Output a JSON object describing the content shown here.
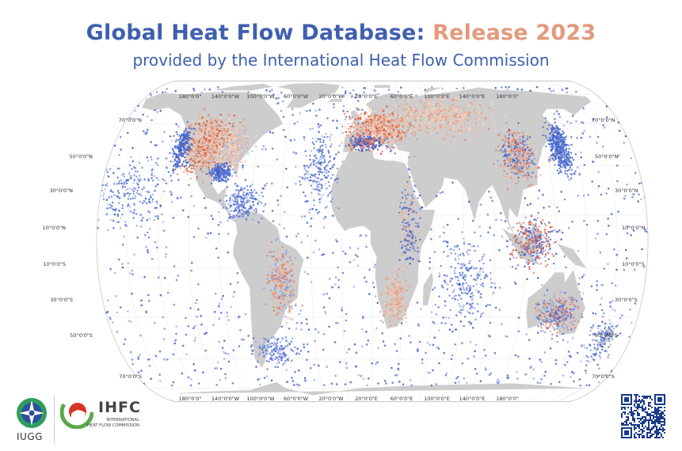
{
  "title_part1": "Global Heat Flow Database:",
  "title_part2": "Release 2023",
  "subtitle": "provided by the International Heat Flow Commission",
  "lon_labels": [
    "180°0'0\"",
    "140°0'0\"W",
    "100°0'0\"W",
    "60°0'0\"W",
    "20°0'0\"W",
    "20°0'0\"E",
    "60°0'0\"E",
    "100°0'0\"E",
    "140°0'0\"E",
    "180°0'0\""
  ],
  "lat_labels": [
    "70°0'0\"N",
    "50°0'0\"N",
    "30°0'0\"N",
    "10°0'0\"N",
    "10°0'0\"S",
    "30°0'0\"S",
    "50°0'0\"S",
    "70°0'0\"S"
  ],
  "logos": {
    "iugg": "IUGG",
    "ihfc": "IHFC",
    "ihfc_sub1": "INTERNATIONAL",
    "ihfc_sub2": "HEAT FLOW COMMISSION"
  },
  "colors": {
    "title_blue": "#3f5fb0",
    "title_orange": "#e39a7c",
    "land": "#cdcdcd",
    "low": "#3f5fc8",
    "high": "#d94a2a"
  },
  "icons": [
    "iugg-logo-icon",
    "ihfc-logo-icon",
    "qr-code-icon"
  ]
}
